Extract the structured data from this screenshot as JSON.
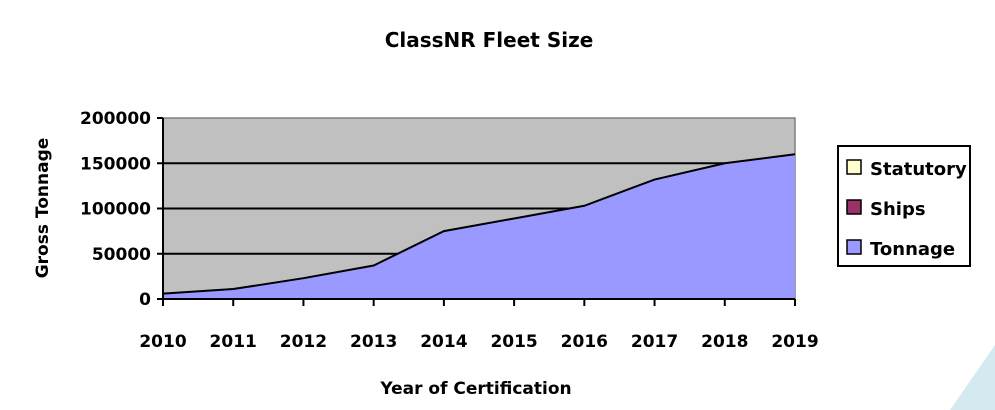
{
  "chart_data": {
    "type": "area",
    "title": "ClassNR Fleet Size",
    "xlabel": "Year of Certification",
    "ylabel": "Gross Tonnage",
    "categories": [
      "2010",
      "2011",
      "2012",
      "2013",
      "2014",
      "2015",
      "2016",
      "2017",
      "2018",
      "2019"
    ],
    "yticks": [
      "0",
      "50000",
      "100000",
      "150000",
      "200000"
    ],
    "ylim": [
      0,
      200000
    ],
    "grid": true,
    "legend_position": "right",
    "legend": [
      {
        "name": "Statutory",
        "color": "#ffffcc"
      },
      {
        "name": "Ships",
        "color": "#993366"
      },
      {
        "name": "Tonnage",
        "color": "#9999ff"
      }
    ],
    "series": [
      {
        "name": "Tonnage",
        "values": [
          6000,
          11000,
          23000,
          37000,
          75000,
          89000,
          103000,
          132000,
          150000,
          160000
        ]
      }
    ],
    "plot_bg": "#c0c0c0"
  }
}
